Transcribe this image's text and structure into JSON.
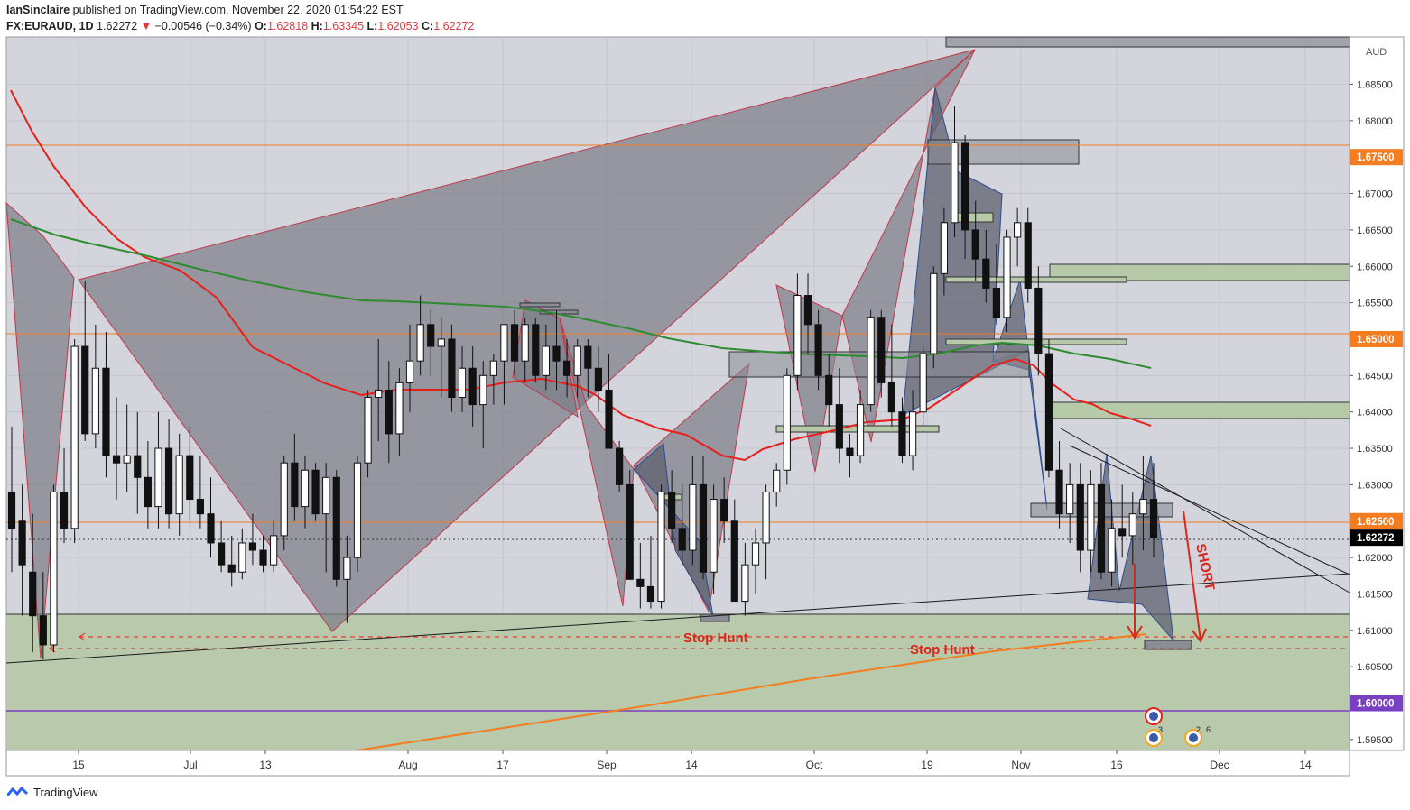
{
  "header": {
    "author": "IanSinclaire",
    "published_text": "published on TradingView.com, November 22, 2020 01:54:22 EST",
    "symbol": "FX:EURAUD, 1D",
    "last": "1.62272",
    "change": "−0.00546 (−0.34%)",
    "o_label": "O:",
    "o": "1.62818",
    "h_label": "H:",
    "h": "1.63345",
    "l_label": "L:",
    "l": "1.62053",
    "c_label": "C:",
    "c": "1.62272"
  },
  "footer": {
    "brand": "TradingView"
  },
  "chart_data": {
    "type": "candlestick",
    "currency": "AUD",
    "ylim": [
      1.5935,
      1.6915
    ],
    "y_ticks": [
      "1.68500",
      "1.68000",
      "1.67000",
      "1.66500",
      "1.66000",
      "1.65500",
      "1.64500",
      "1.64000",
      "1.63500",
      "1.63000",
      "1.62000",
      "1.61500",
      "1.61000",
      "1.60500",
      "1.59500"
    ],
    "x_ticks": [
      "15",
      "Jul",
      "13",
      "Aug",
      "17",
      "Sep",
      "14",
      "Oct",
      "19",
      "Nov",
      "16",
      "Dec",
      "14"
    ],
    "price_labels": [
      {
        "text": "1.67500",
        "value": 1.675,
        "color": "#f57c1f"
      },
      {
        "text": "1.65000",
        "value": 1.65,
        "color": "#f57c1f"
      },
      {
        "text": "1.62500",
        "value": 1.625,
        "color": "#f57c1f"
      },
      {
        "text": "1.62272",
        "value": 1.62272,
        "color": "#000000"
      },
      {
        "text": "1.60000",
        "value": 1.6,
        "color": "#7b3fc4"
      }
    ],
    "horizontal_levels": [
      1.675,
      1.65,
      1.625,
      1.6
    ],
    "candles_approx": [
      [
        1.629,
        1.638,
        1.618,
        1.624
      ],
      [
        1.625,
        1.63,
        1.612,
        1.619
      ],
      [
        1.618,
        1.626,
        1.607,
        1.612
      ],
      [
        1.612,
        1.618,
        1.606,
        1.608
      ],
      [
        1.608,
        1.63,
        1.607,
        1.629
      ],
      [
        1.629,
        1.635,
        1.622,
        1.624
      ],
      [
        1.624,
        1.65,
        1.622,
        1.649
      ],
      [
        1.649,
        1.658,
        1.636,
        1.637
      ],
      [
        1.637,
        1.652,
        1.635,
        1.646
      ],
      [
        1.646,
        1.651,
        1.631,
        1.634
      ],
      [
        1.634,
        1.642,
        1.628,
        1.633
      ],
      [
        1.633,
        1.641,
        1.629,
        1.634
      ],
      [
        1.634,
        1.64,
        1.626,
        1.631
      ],
      [
        1.631,
        1.636,
        1.624,
        1.627
      ],
      [
        1.627,
        1.64,
        1.624,
        1.635
      ],
      [
        1.635,
        1.639,
        1.624,
        1.626
      ],
      [
        1.626,
        1.637,
        1.623,
        1.634
      ],
      [
        1.634,
        1.638,
        1.625,
        1.628
      ],
      [
        1.628,
        1.634,
        1.624,
        1.626
      ],
      [
        1.626,
        1.631,
        1.62,
        1.622
      ],
      [
        1.622,
        1.625,
        1.618,
        1.619
      ],
      [
        1.619,
        1.623,
        1.616,
        1.618
      ],
      [
        1.618,
        1.624,
        1.617,
        1.622
      ],
      [
        1.622,
        1.626,
        1.619,
        1.621
      ],
      [
        1.621,
        1.623,
        1.618,
        1.619
      ],
      [
        1.619,
        1.625,
        1.618,
        1.623
      ],
      [
        1.623,
        1.634,
        1.621,
        1.633
      ],
      [
        1.633,
        1.637,
        1.625,
        1.627
      ],
      [
        1.627,
        1.634,
        1.624,
        1.632
      ],
      [
        1.632,
        1.633,
        1.625,
        1.626
      ],
      [
        1.626,
        1.633,
        1.618,
        1.631
      ],
      [
        1.631,
        1.632,
        1.616,
        1.617
      ],
      [
        1.617,
        1.623,
        1.611,
        1.62
      ],
      [
        1.62,
        1.634,
        1.618,
        1.633
      ],
      [
        1.633,
        1.643,
        1.631,
        1.642
      ],
      [
        1.642,
        1.65,
        1.636,
        1.643
      ],
      [
        1.643,
        1.647,
        1.633,
        1.637
      ],
      [
        1.637,
        1.646,
        1.634,
        1.644
      ],
      [
        1.644,
        1.652,
        1.64,
        1.647
      ],
      [
        1.647,
        1.656,
        1.645,
        1.652
      ],
      [
        1.652,
        1.654,
        1.645,
        1.649
      ],
      [
        1.649,
        1.653,
        1.642,
        1.65
      ],
      [
        1.65,
        1.652,
        1.64,
        1.642
      ],
      [
        1.642,
        1.649,
        1.64,
        1.646
      ],
      [
        1.646,
        1.649,
        1.638,
        1.641
      ],
      [
        1.641,
        1.647,
        1.635,
        1.645
      ],
      [
        1.645,
        1.648,
        1.641,
        1.647
      ],
      [
        1.647,
        1.652,
        1.641,
        1.652
      ],
      [
        1.652,
        1.654,
        1.645,
        1.647
      ],
      [
        1.647,
        1.653,
        1.644,
        1.652
      ],
      [
        1.652,
        1.653,
        1.644,
        1.645
      ],
      [
        1.645,
        1.652,
        1.643,
        1.649
      ],
      [
        1.649,
        1.654,
        1.643,
        1.647
      ],
      [
        1.647,
        1.65,
        1.642,
        1.645
      ],
      [
        1.645,
        1.65,
        1.642,
        1.649
      ],
      [
        1.649,
        1.65,
        1.642,
        1.646
      ],
      [
        1.646,
        1.649,
        1.64,
        1.643
      ],
      [
        1.643,
        1.648,
        1.638,
        1.635
      ],
      [
        1.635,
        1.636,
        1.629,
        1.63
      ],
      [
        1.63,
        1.632,
        1.617,
        1.617
      ],
      [
        1.617,
        1.622,
        1.613,
        1.616
      ],
      [
        1.616,
        1.623,
        1.613,
        1.614
      ],
      [
        1.614,
        1.63,
        1.613,
        1.629
      ],
      [
        1.629,
        1.632,
        1.622,
        1.624
      ],
      [
        1.624,
        1.63,
        1.619,
        1.621
      ],
      [
        1.621,
        1.634,
        1.619,
        1.63
      ],
      [
        1.63,
        1.634,
        1.617,
        1.618
      ],
      [
        1.618,
        1.63,
        1.615,
        1.628
      ],
      [
        1.628,
        1.631,
        1.622,
        1.625
      ],
      [
        1.625,
        1.628,
        1.614,
        1.614
      ],
      [
        1.614,
        1.622,
        1.612,
        1.619
      ],
      [
        1.619,
        1.624,
        1.615,
        1.622
      ],
      [
        1.622,
        1.63,
        1.617,
        1.629
      ],
      [
        1.629,
        1.633,
        1.627,
        1.632
      ],
      [
        1.632,
        1.646,
        1.63,
        1.645
      ],
      [
        1.645,
        1.659,
        1.643,
        1.656
      ],
      [
        1.656,
        1.659,
        1.648,
        1.652
      ],
      [
        1.652,
        1.654,
        1.643,
        1.645
      ],
      [
        1.645,
        1.648,
        1.638,
        1.641
      ],
      [
        1.641,
        1.646,
        1.633,
        1.635
      ],
      [
        1.635,
        1.637,
        1.631,
        1.634
      ],
      [
        1.634,
        1.643,
        1.633,
        1.641
      ],
      [
        1.641,
        1.654,
        1.64,
        1.653
      ],
      [
        1.653,
        1.654,
        1.642,
        1.644
      ],
      [
        1.644,
        1.652,
        1.638,
        1.64
      ],
      [
        1.64,
        1.642,
        1.633,
        1.634
      ],
      [
        1.634,
        1.643,
        1.632,
        1.64
      ],
      [
        1.64,
        1.649,
        1.638,
        1.648
      ],
      [
        1.648,
        1.66,
        1.646,
        1.659
      ],
      [
        1.659,
        1.668,
        1.656,
        1.666
      ],
      [
        1.666,
        1.682,
        1.664,
        1.677
      ],
      [
        1.677,
        1.678,
        1.661,
        1.665
      ],
      [
        1.665,
        1.669,
        1.658,
        1.661
      ],
      [
        1.661,
        1.665,
        1.655,
        1.657
      ],
      [
        1.657,
        1.663,
        1.652,
        1.653
      ],
      [
        1.653,
        1.665,
        1.651,
        1.664
      ],
      [
        1.664,
        1.668,
        1.66,
        1.666
      ],
      [
        1.666,
        1.668,
        1.655,
        1.657
      ],
      [
        1.657,
        1.66,
        1.645,
        1.648
      ],
      [
        1.648,
        1.65,
        1.631,
        1.632
      ],
      [
        1.632,
        1.636,
        1.624,
        1.626
      ],
      [
        1.626,
        1.633,
        1.622,
        1.63
      ],
      [
        1.63,
        1.633,
        1.618,
        1.621
      ],
      [
        1.621,
        1.632,
        1.618,
        1.63
      ],
      [
        1.63,
        1.633,
        1.617,
        1.618
      ],
      [
        1.618,
        1.628,
        1.616,
        1.624
      ],
      [
        1.624,
        1.63,
        1.62,
        1.623
      ],
      [
        1.623,
        1.629,
        1.619,
        1.626
      ],
      [
        1.626,
        1.634,
        1.621,
        1.628
      ],
      [
        1.628,
        1.633,
        1.62,
        1.6227
      ]
    ],
    "series": [
      {
        "name": "",
        "color": "#e8201c",
        "points": [
          [
            12,
            100
          ],
          [
            35,
            145
          ],
          [
            60,
            185
          ],
          [
            95,
            230
          ],
          [
            130,
            265
          ],
          [
            160,
            285
          ],
          [
            200,
            300
          ],
          [
            240,
            330
          ],
          [
            280,
            385
          ],
          [
            320,
            405
          ],
          [
            360,
            425
          ],
          [
            400,
            438
          ],
          [
            440,
            432
          ],
          [
            480,
            432
          ],
          [
            520,
            432
          ],
          [
            560,
            424
          ],
          [
            600,
            420
          ],
          [
            640,
            428
          ],
          [
            660,
            438
          ],
          [
            690,
            460
          ],
          [
            730,
            475
          ],
          [
            760,
            482
          ],
          [
            800,
            505
          ],
          [
            825,
            510
          ],
          [
            845,
            498
          ],
          [
            880,
            487
          ],
          [
            920,
            478
          ],
          [
            960,
            468
          ],
          [
            1000,
            465
          ],
          [
            1030,
            452
          ],
          [
            1060,
            432
          ],
          [
            1080,
            418
          ],
          [
            1100,
            405
          ],
          [
            1125,
            398
          ],
          [
            1145,
            405
          ],
          [
            1165,
            425
          ],
          [
            1190,
            443
          ],
          [
            1210,
            448
          ],
          [
            1230,
            458
          ],
          [
            1255,
            465
          ],
          [
            1275,
            472
          ]
        ]
      },
      {
        "name": "",
        "color": "#2f8b2f",
        "points": [
          [
            12,
            243
          ],
          [
            60,
            260
          ],
          [
            100,
            270
          ],
          [
            160,
            283
          ],
          [
            220,
            298
          ],
          [
            280,
            312
          ],
          [
            340,
            324
          ],
          [
            400,
            333
          ],
          [
            440,
            334
          ],
          [
            500,
            337
          ],
          [
            560,
            340
          ],
          [
            600,
            345
          ],
          [
            640,
            352
          ],
          [
            700,
            365
          ],
          [
            740,
            375
          ],
          [
            800,
            386
          ],
          [
            850,
            390
          ],
          [
            900,
            393
          ],
          [
            960,
            395
          ],
          [
            1000,
            397
          ],
          [
            1040,
            392
          ],
          [
            1080,
            383
          ],
          [
            1110,
            380
          ],
          [
            1150,
            383
          ],
          [
            1190,
            392
          ],
          [
            1230,
            398
          ],
          [
            1275,
            408
          ]
        ]
      },
      {
        "name": "",
        "color": "#f57c1f",
        "points": [
          [
            395,
            832
          ],
          [
            700,
            785
          ],
          [
            900,
            752
          ],
          [
            1100,
            722
          ],
          [
            1270,
            703
          ]
        ]
      }
    ],
    "annotations": [
      {
        "text": "Stop Hunt",
        "color": "#d8281c"
      },
      {
        "text": "Stop Hunt",
        "color": "#d8281c"
      },
      {
        "text": "SHORT",
        "color": "#d8281c"
      }
    ],
    "event_badges": [
      "3",
      "2",
      "6"
    ],
    "grid": true
  }
}
